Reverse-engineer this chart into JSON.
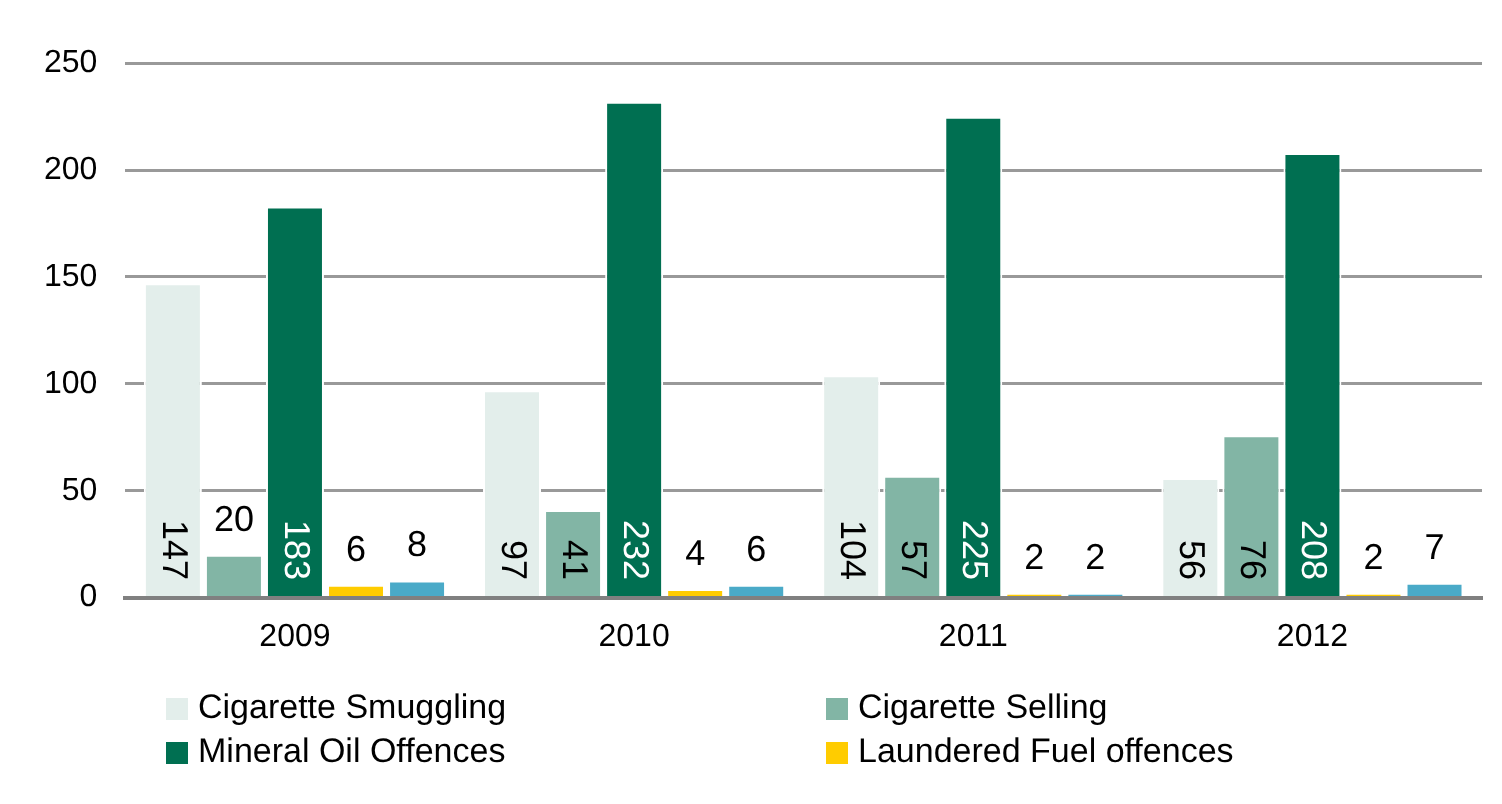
{
  "chart_data": {
    "type": "bar",
    "categories": [
      "2009",
      "2010",
      "2011",
      "2012"
    ],
    "series": [
      {
        "name": "Cigarette Smuggling",
        "color": "#e3eeeb",
        "values": [
          147,
          97,
          104,
          56
        ]
      },
      {
        "name": "Cigarette Selling",
        "color": "#82b5a5",
        "values": [
          20,
          41,
          57,
          76
        ]
      },
      {
        "name": "Mineral Oil Offences",
        "color": "#006f51",
        "values": [
          183,
          232,
          225,
          208
        ]
      },
      {
        "name": "Laundered Fuel offences",
        "color": "#ffcc00",
        "values": [
          6,
          4,
          2,
          2
        ]
      },
      {
        "color": "#4aaac8",
        "values": [
          8,
          6,
          2,
          7
        ]
      }
    ],
    "ylim": [
      0,
      250
    ],
    "yticks": [
      0,
      50,
      100,
      150,
      200,
      250
    ],
    "grid": "y",
    "legend": "bottom",
    "data_labels": true
  }
}
